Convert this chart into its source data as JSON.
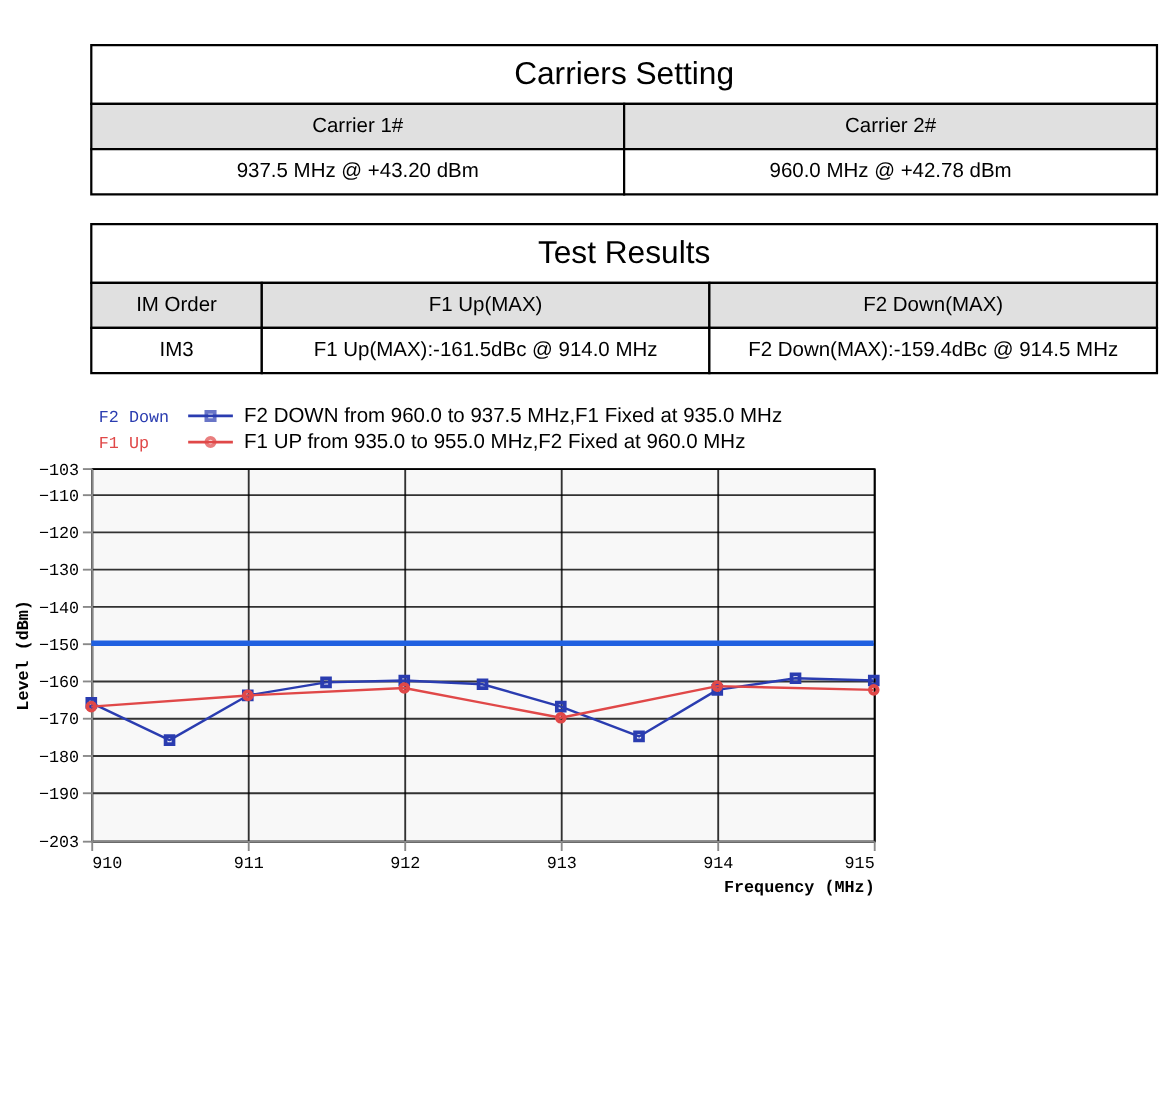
{
  "chart_data": [
    {
      "type": "other",
      "title": "Carriers Setting",
      "categories": [
        "Carrier 1#",
        "Carrier 2#"
      ],
      "annotations": [
        "937.5 MHz @ +43.20 dBm",
        "960.0 MHz @ +42.78 dBm"
      ]
    },
    {
      "type": "other",
      "title": "Test Results",
      "categories": [
        "IM Order",
        "F1 Up(MAX)",
        "F2 Down(MAX)"
      ],
      "annotations": [
        "IM3",
        "F1 Up(MAX):-161.5dBc  @ 914.0 MHz",
        "F2 Down(MAX):-159.4dBc @ 914.5 MHz"
      ]
    },
    {
      "type": "line",
      "xlabel": "Frequency (MHz)",
      "ylabel": "Level (dBm)",
      "x": [
        910,
        910.5,
        911,
        911.5,
        912,
        912.5,
        913,
        913.5,
        914,
        914.5,
        915
      ],
      "series": [
        {
          "name": "F2 Down",
          "color": "#2a3cb0",
          "marker": "square",
          "values": [
            -166,
            -176,
            -164,
            -160.5,
            -160,
            -161,
            -167,
            -175,
            -162.5,
            -159.4,
            -160
          ]
        },
        {
          "name": "F1 Up",
          "color": "#e04848",
          "marker": "circle",
          "x": [
            910,
            911,
            912,
            913,
            914,
            915
          ],
          "values": [
            -167,
            -164,
            -162,
            -170,
            -161.5,
            -162.5
          ]
        }
      ],
      "annotations": [
        "F2 DOWN from 960.0 to 937.5  MHz,F1 Fixed at 935.0  MHz",
        "F1 UP from 935.0 to 955.0  MHz,F2 Fixed at 960.0  MHz"
      ],
      "xlim": [
        910,
        915
      ],
      "xticks": [
        910,
        911,
        912,
        913,
        914,
        915
      ],
      "ylim": [
        -203,
        -103
      ],
      "yticks": [
        -103,
        -110,
        -120,
        -130,
        -140,
        -150,
        -160,
        -170,
        -180,
        -190,
        -203
      ],
      "ref_lines": [
        {
          "axis": "y",
          "value": -150,
          "color": "#2060e0"
        }
      ],
      "grid": true,
      "legend": "top"
    }
  ]
}
